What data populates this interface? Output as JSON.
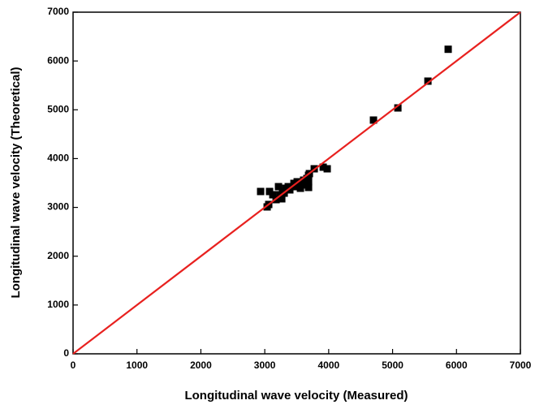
{
  "chart_data": {
    "type": "scatter",
    "x_label": "Longitudinal wave velocity (Measured)",
    "y_label": "Longitudinal wave velocity (Theoretical)",
    "xlim": [
      0,
      7000
    ],
    "ylim": [
      0,
      7000
    ],
    "xticks": [
      0,
      1000,
      2000,
      3000,
      4000,
      5000,
      6000,
      7000
    ],
    "yticks": [
      0,
      1000,
      2000,
      3000,
      4000,
      5000,
      6000,
      7000
    ],
    "series": [
      {
        "type": "scatter",
        "color": "#000000",
        "x": [
          2935,
          5870,
          5553,
          5083,
          4701,
          3977,
          3914,
          3774,
          3685,
          3685,
          3037,
          3062,
          3075,
          3126,
          3177,
          3215,
          3240,
          3278,
          3304,
          3329,
          3367,
          3392,
          3431,
          3456,
          3482,
          3507,
          3532,
          3558,
          3583,
          3608,
          3634,
          3659,
          3685,
          3698,
          3266
        ],
        "values": [
          3326,
          6240,
          5587,
          5038,
          4789,
          3791,
          3824,
          3791,
          3658,
          3409,
          3010,
          3060,
          3326,
          3259,
          3159,
          3425,
          3259,
          3326,
          3292,
          3392,
          3425,
          3359,
          3425,
          3492,
          3425,
          3525,
          3459,
          3392,
          3525,
          3558,
          3459,
          3592,
          3525,
          3692,
          3176
        ]
      },
      {
        "type": "line",
        "color": "#e8211f",
        "x": [
          0,
          7000
        ],
        "values": [
          0,
          7000
        ]
      }
    ]
  }
}
